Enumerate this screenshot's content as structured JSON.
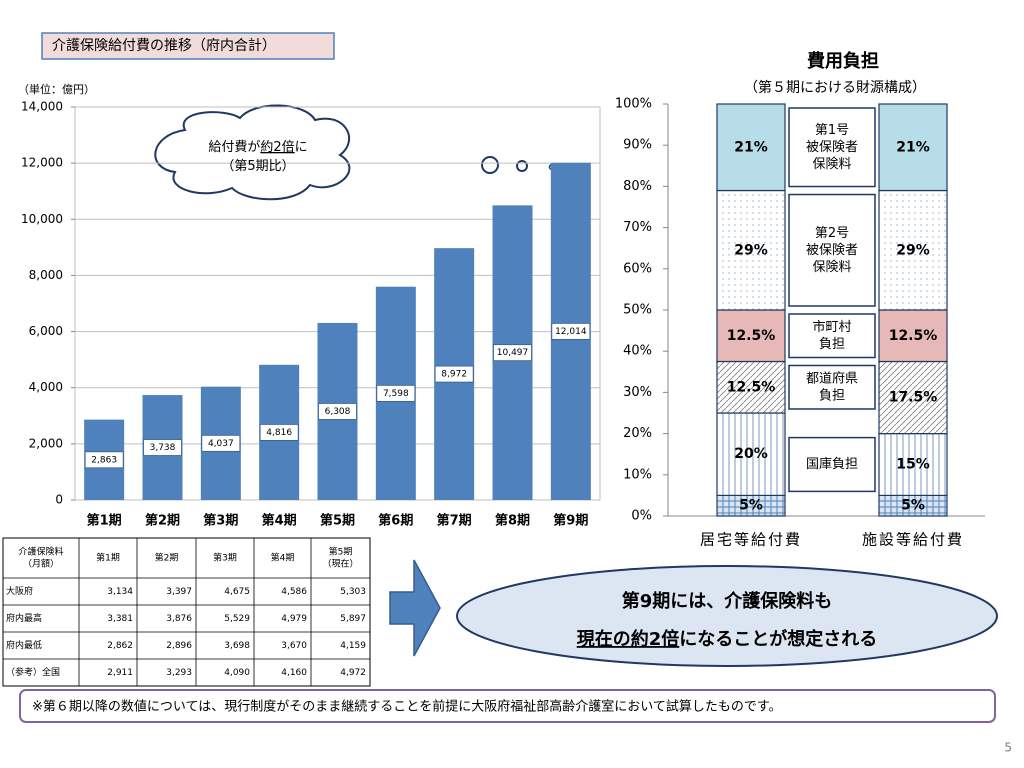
{
  "title": "介護保険給付費の推移（府内合計）",
  "chart_data": [
    {
      "type": "bar",
      "unit_label": "（単位：億円）",
      "categories": [
        "第1期",
        "第2期",
        "第3期",
        "第4期",
        "第5期",
        "第6期",
        "第7期",
        "第8期",
        "第9期"
      ],
      "values": [
        2863,
        3738,
        4037,
        4816,
        6308,
        7598,
        8972,
        10497,
        12014
      ],
      "value_labels": [
        "2,863",
        "3,738",
        "4,037",
        "4,816",
        "6,308",
        "7,598",
        "8,972",
        "10,497",
        "12,014"
      ],
      "color": "#4f81bd",
      "ylim": [
        0,
        14000
      ],
      "yticks": [
        0,
        {
          "value": 2000,
          "label": "2,000"
        },
        {
          "value": 4000,
          "label": "4,000"
        },
        {
          "value": 6000,
          "label": "6,000"
        },
        {
          "value": 8000,
          "label": "8,000"
        },
        {
          "value": 10000,
          "label": "10,000"
        },
        {
          "value": 12000,
          "label": "12,000"
        },
        {
          "value": 14000,
          "label": "14,000"
        }
      ],
      "grid": true,
      "annotation": [
        [
          "給付費が",
          "約2倍",
          "に"
        ],
        [
          "（第5期比）"
        ]
      ]
    },
    {
      "type": "stacked_bar",
      "title": "費用負担",
      "subtitle": "（第５期における財源構成）",
      "categories": [
        "居宅等給付費",
        "施設等給付費"
      ],
      "series": [
        {
          "name": null,
          "values": [
            5,
            5
          ],
          "value_labels": [
            "5%",
            "5%"
          ],
          "color": "#4f81bd",
          "pattern": "grid"
        },
        {
          "name": [
            "国庫負担"
          ],
          "values": [
            20,
            15
          ],
          "value_labels": [
            "20%",
            "15%"
          ],
          "color": "#5b7fb0",
          "pattern": "vertical"
        },
        {
          "name": [
            "都道府県",
            "負担"
          ],
          "values": [
            12.5,
            17.5
          ],
          "value_labels": [
            "12.5%",
            "17.5%"
          ],
          "color": "#7f7f7f",
          "pattern": "diagonal"
        },
        {
          "name": [
            "市町村",
            "負担"
          ],
          "values": [
            12.5,
            12.5
          ],
          "value_labels": [
            "12.5%",
            "12.5%"
          ],
          "color": "#e6b9b8"
        },
        {
          "name": [
            "第2号",
            "被保険者",
            "保険料"
          ],
          "values": [
            29,
            29
          ],
          "value_labels": [
            "29%",
            "29%"
          ],
          "color": "#8ea9c8",
          "pattern": "dots"
        },
        {
          "name": [
            "第1号",
            "被保険者",
            "保険料"
          ],
          "values": [
            21,
            21
          ],
          "value_labels": [
            "21%",
            "21%"
          ],
          "color": "#b7dde8"
        }
      ],
      "ylim": [
        0,
        100
      ],
      "yticks": [
        {
          "value": 0,
          "label": "0%"
        },
        {
          "value": 10,
          "label": "10%"
        },
        {
          "value": 20,
          "label": "20%"
        },
        {
          "value": 30,
          "label": "30%"
        },
        {
          "value": 40,
          "label": "40%"
        },
        {
          "value": 50,
          "label": "50%"
        },
        {
          "value": 60,
          "label": "60%"
        },
        {
          "value": 70,
          "label": "70%"
        },
        {
          "value": 80,
          "label": "80%"
        },
        {
          "value": 90,
          "label": "90%"
        },
        {
          "value": 100,
          "label": "100%"
        }
      ]
    }
  ],
  "table": {
    "header": [
      [
        "介護保険料",
        "（月額）"
      ],
      [
        "第1期"
      ],
      [
        "第2期"
      ],
      [
        "第3期"
      ],
      [
        "第4期"
      ],
      [
        "第5期",
        "（現在）"
      ]
    ],
    "rows": [
      [
        "大阪府",
        "3,134",
        "3,397",
        "4,675",
        "4,586",
        "5,303"
      ],
      [
        "府内最高",
        "3,381",
        "3,876",
        "5,529",
        "4,979",
        "5,897"
      ],
      [
        "府内最低",
        "2,862",
        "2,896",
        "3,698",
        "3,670",
        "4,159"
      ],
      [
        "（参考）全国",
        "2,911",
        "3,293",
        "4,090",
        "4,160",
        "4,972"
      ]
    ]
  },
  "callout": [
    [
      "第9期には、介護保険料も"
    ],
    [
      "現在の約2倍",
      "になることが想定される"
    ]
  ],
  "note": "※第６期以降の数値については、現行制度がそのまま継続することを前提に大阪府福祉部高齢介護室において試算したものです。",
  "page_number": "5"
}
